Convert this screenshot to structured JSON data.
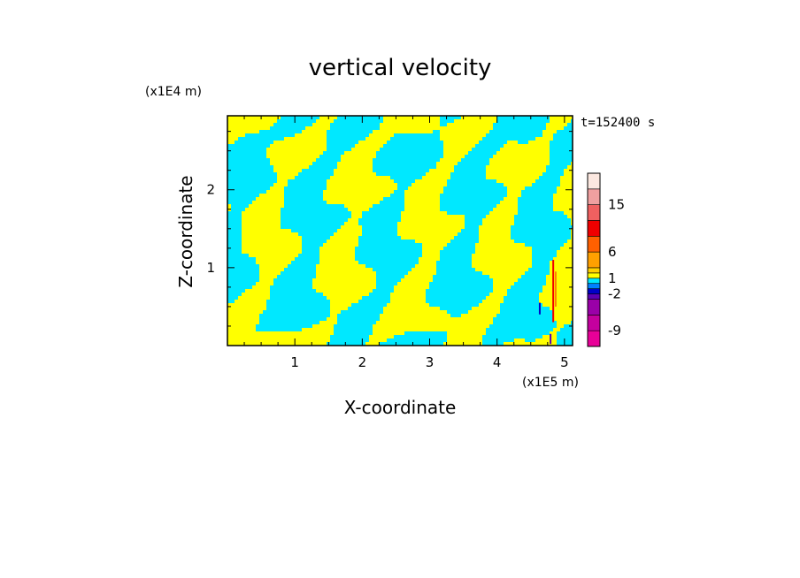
{
  "chart_data": {
    "type": "heatmap",
    "title": "vertical velocity",
    "xlabel": "X-coordinate",
    "ylabel": "Z-coordinate",
    "x_scale_label": "(x1E5 m)",
    "y_scale_label": "(x1E4 m)",
    "time_label": "t=152400 s",
    "xlim": [
      0,
      5.12
    ],
    "ylim": [
      0,
      2.95
    ],
    "x_ticks": [
      "1",
      "2",
      "3",
      "4",
      "5"
    ],
    "x_tick_values": [
      1,
      2,
      3,
      4,
      5
    ],
    "y_ticks": [
      "1",
      "2"
    ],
    "y_tick_values": [
      1,
      2
    ],
    "colorbar": {
      "levels": [
        -12,
        -9,
        -6,
        -3,
        -2,
        -1,
        0,
        1,
        2,
        3,
        6,
        9,
        12,
        15,
        18,
        21
      ],
      "tick_labels": [
        "15",
        "6",
        "1",
        "-2",
        "-9"
      ],
      "tick_values": [
        15,
        6,
        1,
        -2,
        -9
      ],
      "colors": [
        "#e80098",
        "#c4009e",
        "#9a00a8",
        "#5a00b4",
        "#0000c8",
        "#0080ff",
        "#00e8ff",
        "#ffff00",
        "#ffd000",
        "#ffa000",
        "#ff6000",
        "#f00000",
        "#f06060",
        "#f0a0a0",
        "#fce8e0"
      ]
    },
    "dominant_colors": {
      "positive": "#ffff00",
      "negative": "#00e8ff"
    }
  }
}
